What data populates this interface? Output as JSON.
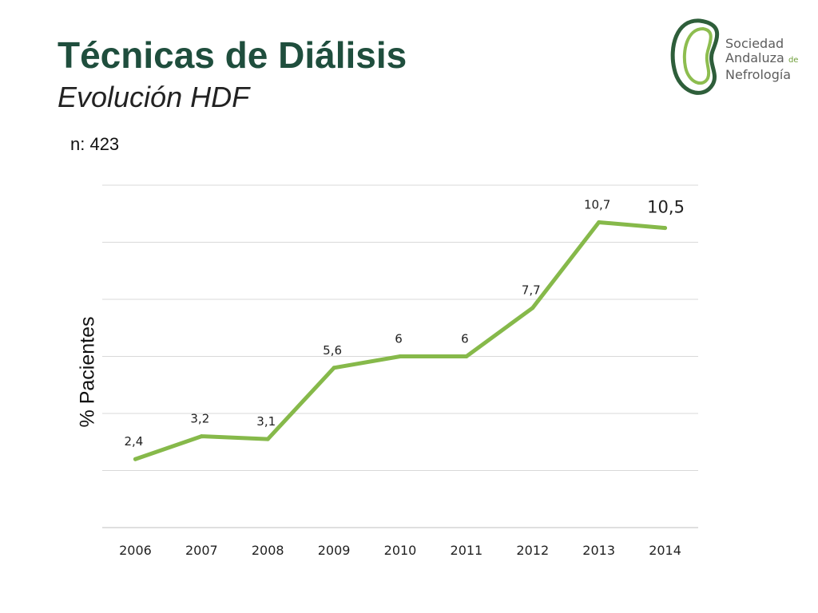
{
  "slide": {
    "title": "Técnicas de Diálisis",
    "subtitle": "Evolución HDF",
    "note": "n: 423"
  },
  "logo": {
    "line1": "Sociedad",
    "line2": "Andaluza",
    "line2_suffix": "de",
    "line3": "Nefrología",
    "colors": {
      "outer": "#2e5e3a",
      "inner": "#8dbd4f",
      "text": "#5d5d5d"
    }
  },
  "colors": {
    "title": "#1f4e3d",
    "line": "#86b94a",
    "grid": "#d9d9d9"
  },
  "chart_data": {
    "type": "line",
    "ylabel": "%  Pacientes",
    "grid": true,
    "ylim": [
      0,
      12
    ],
    "categories": [
      "2006",
      "2007",
      "2008",
      "2009",
      "2010",
      "2011",
      "2012",
      "2013",
      "2014"
    ],
    "values": [
      2.4,
      3.2,
      3.1,
      5.6,
      6,
      6,
      7.7,
      10.7,
      10.5
    ],
    "data_labels": [
      "2,4",
      "3,2",
      "3,1",
      "5,6",
      "6",
      "6",
      "7,7",
      "10,7",
      "10,5"
    ]
  }
}
